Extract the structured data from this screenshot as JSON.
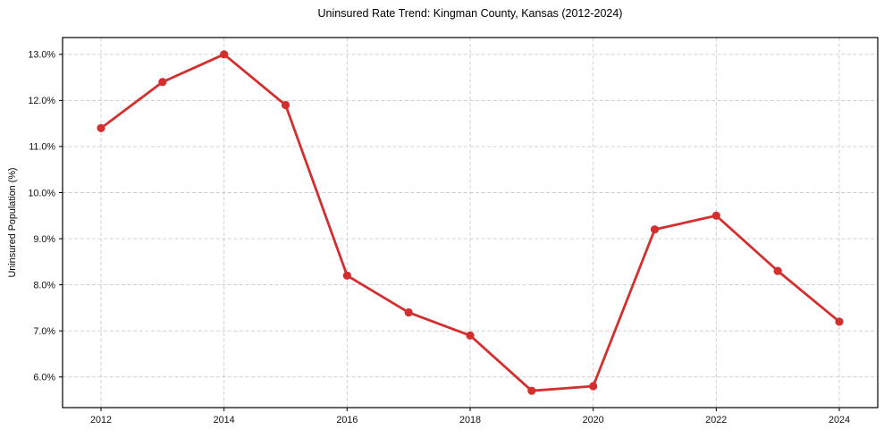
{
  "chart_data": {
    "type": "line",
    "title": "Uninsured Rate Trend: Kingman County, Kansas (2012-2024)",
    "xlabel": "",
    "ylabel": "Uninsured Population (%)",
    "series_name": "Uninsured rate",
    "x": [
      2012,
      2013,
      2014,
      2015,
      2016,
      2017,
      2018,
      2019,
      2020,
      2021,
      2022,
      2023,
      2024
    ],
    "values": [
      11.4,
      12.4,
      13.0,
      11.9,
      8.2,
      7.4,
      6.9,
      5.7,
      5.8,
      9.2,
      9.5,
      8.3,
      7.2
    ],
    "x_ticks": [
      2012,
      2014,
      2016,
      2018,
      2020,
      2022,
      2024
    ],
    "x_tick_labels": [
      "2012",
      "2014",
      "2016",
      "2018",
      "2020",
      "2022",
      "2024"
    ],
    "y_ticks": [
      6.0,
      7.0,
      8.0,
      9.0,
      10.0,
      11.0,
      12.0,
      13.0
    ],
    "y_tick_labels": [
      "6.0%",
      "7.0%",
      "8.0%",
      "9.0%",
      "10.0%",
      "11.0%",
      "12.0%",
      "13.0%"
    ],
    "xlim": [
      2011.375,
      2024.625
    ],
    "ylim": [
      5.335,
      13.365
    ],
    "grid": true,
    "legend": "none",
    "line_color": "#d32f2f",
    "marker": "circle",
    "background_color": "#ffffff"
  }
}
